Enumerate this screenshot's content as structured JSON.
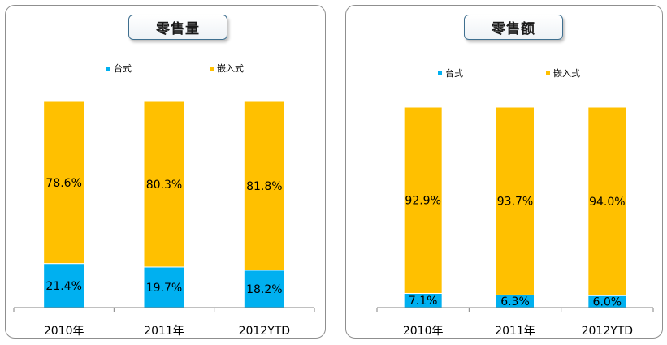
{
  "colors": {
    "desktop": "#00b0f0",
    "embedded": "#ffc000",
    "axis": "#808080",
    "text": "#000000"
  },
  "chart_data": [
    {
      "type": "bar",
      "stacked": true,
      "percent": true,
      "title": "零售量",
      "categories": [
        "2010年",
        "2011年",
        "2012YTD"
      ],
      "series": [
        {
          "name": "台式",
          "values": [
            21.4,
            19.7,
            18.2
          ],
          "labels": [
            "21.4%",
            "19.7%",
            "18.2%"
          ]
        },
        {
          "name": "嵌入式",
          "values": [
            78.6,
            80.3,
            81.8
          ],
          "labels": [
            "78.6%",
            "80.3%",
            "81.8%"
          ]
        }
      ],
      "ylim": [
        0,
        100
      ],
      "legend": "top",
      "grid": false
    },
    {
      "type": "bar",
      "stacked": true,
      "percent": true,
      "title": "零售额",
      "categories": [
        "2010年",
        "2011年",
        "2012YTD"
      ],
      "series": [
        {
          "name": "台式",
          "values": [
            7.1,
            6.3,
            6.0
          ],
          "labels": [
            "7.1%",
            "6.3%",
            "6.0%"
          ]
        },
        {
          "name": "嵌入式",
          "values": [
            92.9,
            93.7,
            94.0
          ],
          "labels": [
            "92.9%",
            "93.7%",
            "94.0%"
          ]
        }
      ],
      "ylim": [
        0,
        100
      ],
      "legend": "top",
      "grid": false
    }
  ]
}
